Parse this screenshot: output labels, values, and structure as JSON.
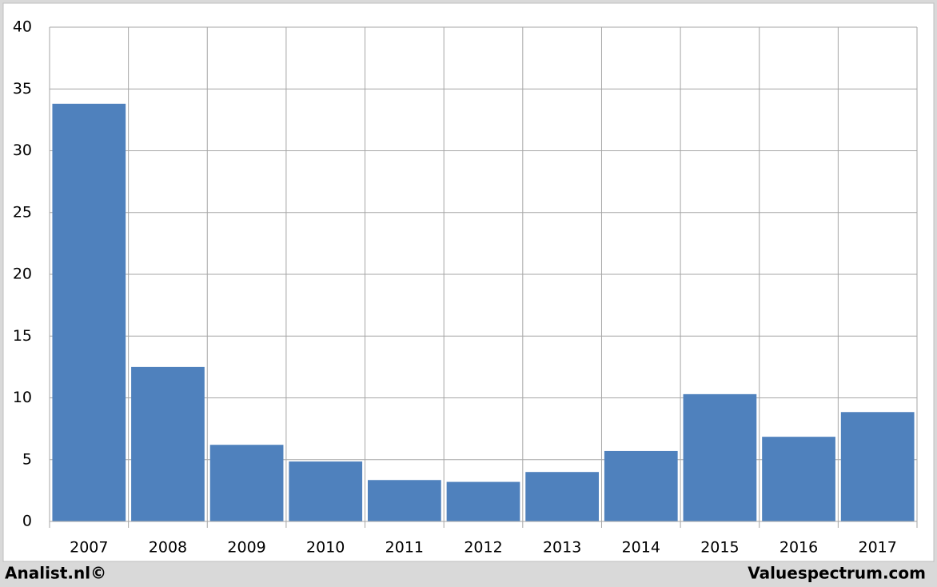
{
  "chart_data": {
    "type": "bar",
    "categories": [
      "2007",
      "2008",
      "2009",
      "2010",
      "2011",
      "2012",
      "2013",
      "2014",
      "2015",
      "2016",
      "2017"
    ],
    "values": [
      33.8,
      12.5,
      6.2,
      4.85,
      3.35,
      3.2,
      4.0,
      5.7,
      10.3,
      6.85,
      8.85
    ],
    "color": "#4f81bd",
    "ylim": [
      0,
      40
    ],
    "yticks": [
      0,
      5,
      10,
      15,
      20,
      25,
      30,
      35,
      40
    ],
    "grid": true,
    "annotations": [
      "Analist.nl©",
      "Valuespectrum.com"
    ]
  }
}
